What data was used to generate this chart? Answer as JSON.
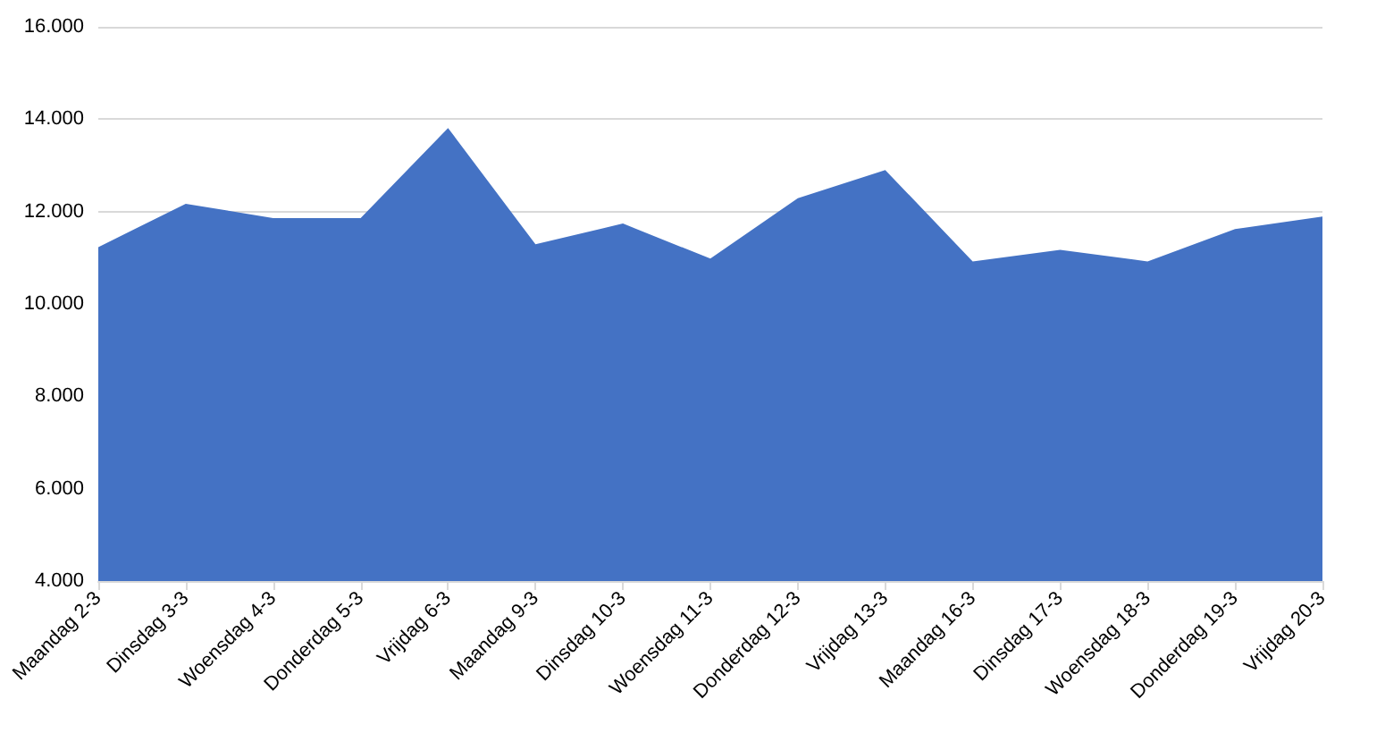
{
  "chart_data": {
    "type": "area",
    "categories": [
      "Maandag 2-3",
      "Dinsdag 3-3",
      "Woensdag 4-3",
      "Donderdag 5-3",
      "Vrijdag 6-3",
      "Maandag 9-3",
      "Dinsdag 10-3",
      "Woensdag 11-3",
      "Donderdag 12-3",
      "Vrijdag 13-3",
      "Maandag 16-3",
      "Dinsdag 17-3",
      "Woensdag 18-3",
      "Donderdag 19-3",
      "Vrijdag 20-3"
    ],
    "values": [
      11230,
      12170,
      11860,
      11860,
      13810,
      11290,
      11740,
      10980,
      12290,
      12900,
      10920,
      11170,
      10920,
      11620,
      11890
    ],
    "color": "#4472c4",
    "ylim": [
      4000,
      16000
    ],
    "yticks": [
      {
        "value": 4000,
        "label": "4.000"
      },
      {
        "value": 6000,
        "label": "6.000"
      },
      {
        "value": 8000,
        "label": "8.000"
      },
      {
        "value": 10000,
        "label": "10.000"
      },
      {
        "value": 12000,
        "label": "12.000"
      },
      {
        "value": 14000,
        "label": "14.000"
      },
      {
        "value": 16000,
        "label": "16.000"
      }
    ],
    "grid": "y"
  }
}
